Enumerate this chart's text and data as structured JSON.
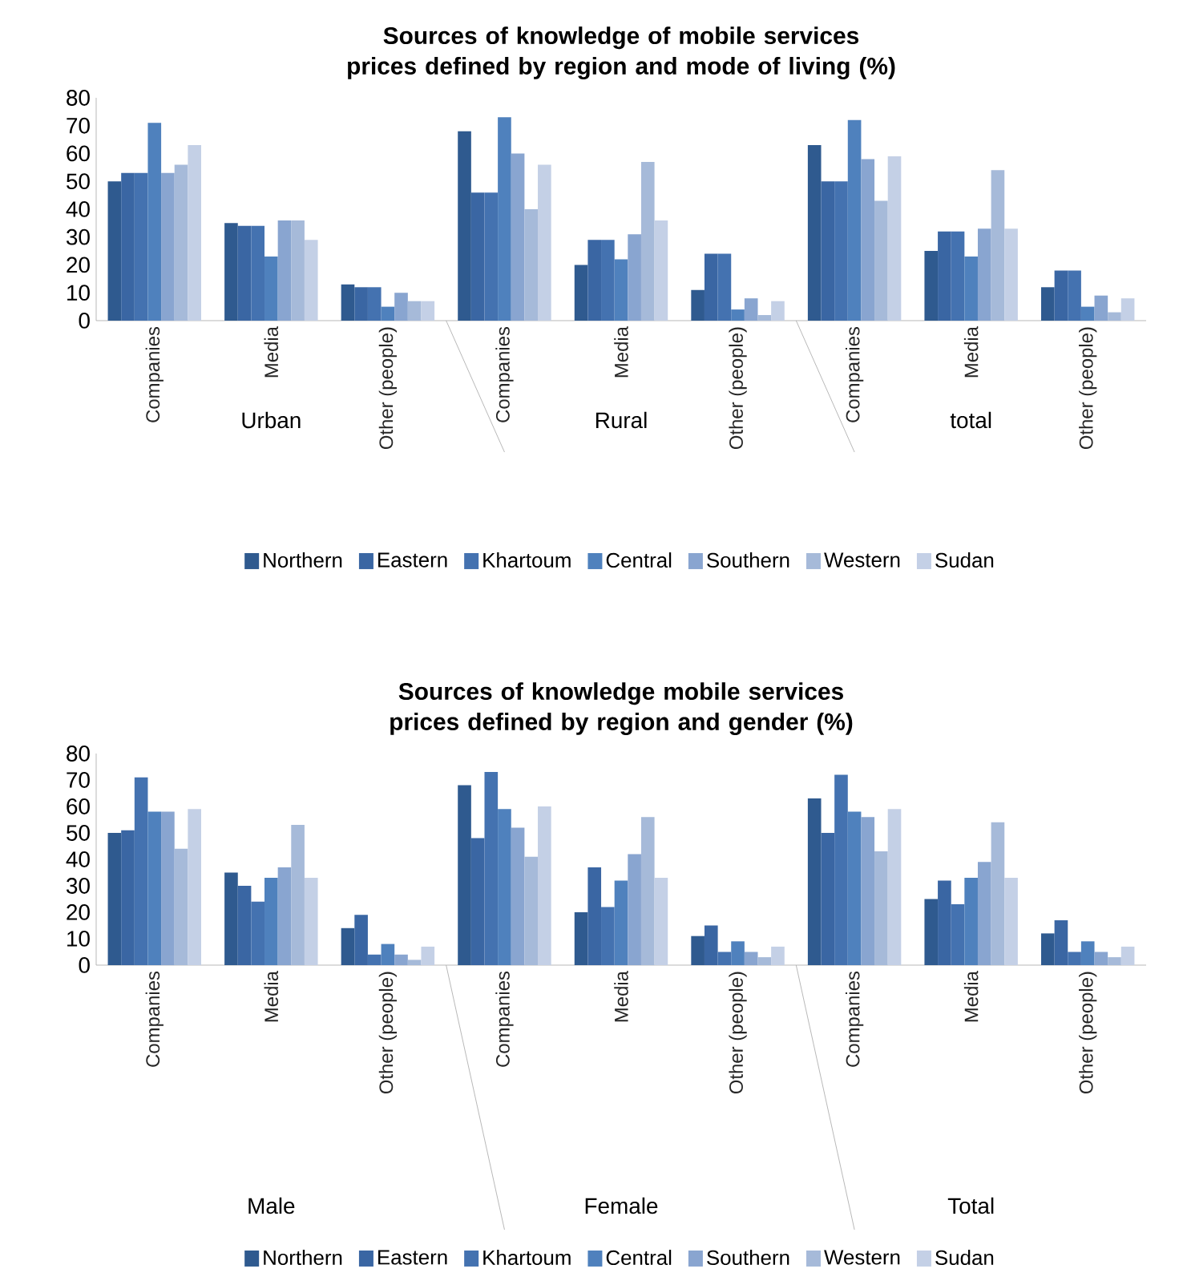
{
  "chart_data": [
    {
      "type": "bar",
      "title": "Sources of knowledge of mobile services prices defined by region and mode of living (%)",
      "categories": [
        "Companies",
        "Media",
        "Other (people)",
        "Companies",
        "Media",
        "Other (people)",
        "Companies",
        "Media",
        "Other (people)"
      ],
      "series": [
        {
          "name": "Northern",
          "color": "#2f5a8f",
          "values": [
            50,
            35,
            13,
            68,
            20,
            11,
            63,
            25,
            12
          ]
        },
        {
          "name": "Eastern",
          "color": "#3a66a3",
          "values": [
            53,
            34,
            12,
            46,
            29,
            24,
            50,
            32,
            18
          ]
        },
        {
          "name": "Khartoum",
          "color": "#4472b0",
          "values": [
            53,
            34,
            12,
            46,
            29,
            24,
            50,
            32,
            18
          ]
        },
        {
          "name": "Central",
          "color": "#4f81bd",
          "values": [
            71,
            23,
            5,
            73,
            22,
            4,
            72,
            23,
            5
          ]
        },
        {
          "name": "Southern",
          "color": "#89a5d0",
          "values": [
            53,
            36,
            10,
            60,
            31,
            8,
            58,
            33,
            9
          ]
        },
        {
          "name": "Western",
          "color": "#a6bad9",
          "values": [
            56,
            36,
            7,
            40,
            57,
            2,
            43,
            54,
            3
          ]
        },
        {
          "name": "Sudan",
          "color": "#c4d0e6",
          "values": [
            63,
            29,
            7,
            56,
            36,
            7,
            59,
            33,
            8
          ]
        }
      ],
      "ylim": [
        0,
        80
      ],
      "yticks": [
        0,
        10,
        20,
        30,
        40,
        50,
        60,
        70,
        80
      ],
      "legend": "bottom",
      "annotations": [
        "Urban",
        "Rural",
        "total"
      ]
    },
    {
      "type": "bar",
      "title": "Sources of knowledge mobile services prices defined by region and gender (%)",
      "categories": [
        "Companies",
        "Media",
        "Other (people)",
        "Companies",
        "Media",
        "Other (people)",
        "Companies",
        "Media",
        "Other (people)"
      ],
      "series": [
        {
          "name": "Northern",
          "color": "#2f5a8f",
          "values": [
            50,
            35,
            14,
            68,
            20,
            11,
            63,
            25,
            12
          ]
        },
        {
          "name": "Eastern",
          "color": "#3a66a3",
          "values": [
            51,
            30,
            19,
            48,
            37,
            15,
            50,
            32,
            17
          ]
        },
        {
          "name": "Khartoum",
          "color": "#4472b0",
          "values": [
            71,
            24,
            4,
            73,
            22,
            5,
            72,
            23,
            5
          ]
        },
        {
          "name": "Central",
          "color": "#4f81bd",
          "values": [
            58,
            33,
            8,
            59,
            32,
            9,
            58,
            33,
            9
          ]
        },
        {
          "name": "Southern",
          "color": "#89a5d0",
          "values": [
            58,
            37,
            4,
            52,
            42,
            5,
            56,
            39,
            5
          ]
        },
        {
          "name": "Western",
          "color": "#a6bad9",
          "values": [
            44,
            53,
            2,
            41,
            56,
            3,
            43,
            54,
            3
          ]
        },
        {
          "name": "Sudan",
          "color": "#c4d0e6",
          "values": [
            59,
            33,
            7,
            60,
            33,
            7,
            59,
            33,
            7
          ]
        }
      ],
      "ylim": [
        0,
        80
      ],
      "yticks": [
        0,
        10,
        20,
        30,
        40,
        50,
        60,
        70,
        80
      ],
      "legend": "bottom",
      "annotations": [
        "Male",
        "Female",
        "Total"
      ]
    }
  ]
}
